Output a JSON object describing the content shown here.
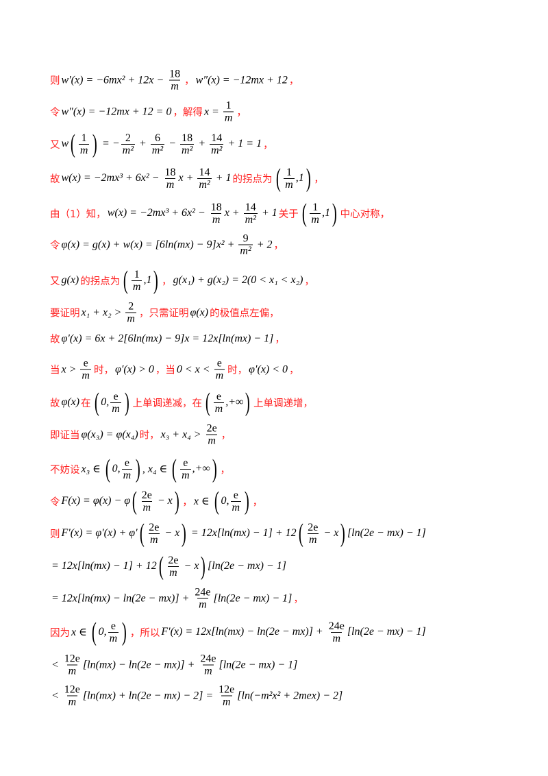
{
  "colors": {
    "text": "#000000",
    "accent": "#ff2020"
  },
  "lines": [
    [
      {
        "zh": "则"
      },
      {
        "m": [
          "w′(x) = −6mx² + 12x − ",
          {
            "f": [
              "18",
              "m"
            ]
          }
        ]
      },
      {
        "zh": "，"
      },
      {
        "m": [
          "w″(x) = −12mx + 12"
        ]
      },
      {
        "zh": "，"
      }
    ],
    [
      {
        "zh": "令"
      },
      {
        "m": [
          "w″(x) = −12mx + 12 = 0"
        ]
      },
      {
        "zh": "，解得"
      },
      {
        "m": [
          "x = ",
          {
            "f": [
              "1",
              "m"
            ]
          }
        ]
      },
      {
        "zh": "，"
      }
    ],
    [
      {
        "zh": "又"
      },
      {
        "m": [
          "w",
          {
            "p": [
              {
                "f": [
                  "1",
                  "m"
                ]
              }
            ]
          },
          " = −",
          {
            "f": [
              "2",
              "m²"
            ]
          },
          " + ",
          {
            "f": [
              "6",
              "m²"
            ]
          },
          " − ",
          {
            "f": [
              "18",
              "m²"
            ]
          },
          " + ",
          {
            "f": [
              "14",
              "m²"
            ]
          },
          " + 1 = 1"
        ]
      },
      {
        "zh": "，"
      }
    ],
    [
      {
        "zh": "故"
      },
      {
        "m": [
          "w(x) = −2mx³ + 6x² − ",
          {
            "f": [
              "18",
              "m"
            ]
          },
          "x + ",
          {
            "f": [
              "14",
              "m²"
            ]
          },
          " + 1"
        ]
      },
      {
        "zh": "的拐点为"
      },
      {
        "m": [
          {
            "p": [
              {
                "f": [
                  "1",
                  "m"
                ]
              },
              ",1"
            ]
          }
        ]
      },
      {
        "zh": "，"
      }
    ],
    [
      {
        "zh": "由（1）知，"
      },
      {
        "m": [
          "w(x) = −2mx³ + 6x² − ",
          {
            "f": [
              "18",
              "m"
            ]
          },
          "x + ",
          {
            "f": [
              "14",
              "m²"
            ]
          },
          " + 1"
        ]
      },
      {
        "zh": "关于"
      },
      {
        "m": [
          {
            "p": [
              {
                "f": [
                  "1",
                  "m"
                ]
              },
              ",1"
            ]
          }
        ]
      },
      {
        "zh": "中心对称，"
      }
    ],
    [
      {
        "zh": "令"
      },
      {
        "m": [
          "φ(x) = g(x) + w(x) = [6ln(mx) − 9]x² + ",
          {
            "f": [
              "9",
              "m²"
            ]
          },
          " + 2"
        ]
      },
      {
        "zh": "，"
      }
    ],
    [
      {
        "zh": "又"
      },
      {
        "m": [
          "g(x)"
        ]
      },
      {
        "zh": "的拐点为"
      },
      {
        "m": [
          {
            "p": [
              {
                "f": [
                  "1",
                  "m"
                ]
              },
              ",1"
            ]
          }
        ]
      },
      {
        "zh": "，"
      },
      {
        "m": [
          "g(x₁) + g(x₂) = 2(0 < x₁ < x₂)"
        ]
      },
      {
        "zh": "，"
      }
    ],
    [
      {
        "zh": "要证明"
      },
      {
        "m": [
          "x₁ + x₂ > ",
          {
            "f": [
              "2",
              "m"
            ]
          }
        ]
      },
      {
        "zh": "，只需证明"
      },
      {
        "m": [
          "φ(x)"
        ]
      },
      {
        "zh": "的极值点左偏，"
      }
    ],
    [
      {
        "zh": "故"
      },
      {
        "m": [
          "φ′(x) = 6x + 2[6ln(mx) − 9]x = 12x[ln(mx) − 1]"
        ]
      },
      {
        "zh": "，"
      }
    ],
    [
      {
        "zh": "当"
      },
      {
        "m": [
          "x > ",
          {
            "f": [
              "e",
              "m"
            ]
          }
        ]
      },
      {
        "zh": "时，"
      },
      {
        "m": [
          "φ′(x) > 0"
        ]
      },
      {
        "zh": "，当"
      },
      {
        "m": [
          "0 < x < ",
          {
            "f": [
              "e",
              "m"
            ]
          }
        ]
      },
      {
        "zh": "时，"
      },
      {
        "m": [
          "φ′(x) < 0"
        ]
      },
      {
        "zh": "，"
      }
    ],
    [
      {
        "zh": "故"
      },
      {
        "m": [
          "φ(x)"
        ]
      },
      {
        "zh": "在"
      },
      {
        "m": [
          {
            "p": [
              "0,",
              {
                "f": [
                  "e",
                  "m"
                ]
              }
            ]
          }
        ]
      },
      {
        "zh": "上单调递减，在"
      },
      {
        "m": [
          {
            "p": [
              {
                "f": [
                  "e",
                  "m"
                ]
              },
              ",+∞"
            ]
          }
        ]
      },
      {
        "zh": "上单调递增，"
      }
    ],
    [
      {
        "zh": "即证当"
      },
      {
        "m": [
          "φ(x₃) = φ(x₄)"
        ]
      },
      {
        "zh": "时，"
      },
      {
        "m": [
          "x₃ + x₄ > ",
          {
            "f": [
              "2e",
              "m"
            ]
          }
        ]
      },
      {
        "zh": "，"
      }
    ],
    [
      {
        "zh": "不妨设"
      },
      {
        "m": [
          "x₃ ∈ ",
          {
            "p": [
              "0,",
              {
                "f": [
                  "e",
                  "m"
                ]
              }
            ]
          },
          ", x₄ ∈ ",
          {
            "p": [
              {
                "f": [
                  "e",
                  "m"
                ]
              },
              ",+∞"
            ]
          }
        ]
      },
      {
        "zh": "，"
      }
    ],
    [
      {
        "zh": "令"
      },
      {
        "m": [
          "F(x) = φ(x) − φ",
          {
            "p": [
              {
                "f": [
                  "2e",
                  "m"
                ]
              },
              " − x"
            ]
          }
        ]
      },
      {
        "zh": "，"
      },
      {
        "m": [
          "x ∈ ",
          {
            "p": [
              "0,",
              {
                "f": [
                  "e",
                  "m"
                ]
              }
            ]
          }
        ]
      },
      {
        "zh": "，"
      }
    ],
    [
      {
        "zh": "则"
      },
      {
        "m": [
          "F′(x) = φ′(x) + φ′",
          {
            "p": [
              {
                "f": [
                  "2e",
                  "m"
                ]
              },
              " − x"
            ]
          },
          " = 12x[ln(mx) − 1] + 12",
          {
            "p": [
              {
                "f": [
                  "2e",
                  "m"
                ]
              },
              " − x"
            ]
          },
          "[ln(2e − mx) − 1]"
        ]
      }
    ],
    [
      {
        "m": [
          "= 12x[ln(mx) − 1] + 12",
          {
            "p": [
              {
                "f": [
                  "2e",
                  "m"
                ]
              },
              " − x"
            ]
          },
          "[ln(2e − mx) − 1]"
        ]
      }
    ],
    [
      {
        "m": [
          "= 12x[ln(mx) − ln(2e − mx)] + ",
          {
            "f": [
              "24e",
              "m"
            ]
          },
          "[ln(2e − mx) − 1]"
        ]
      },
      {
        "zh": "，"
      }
    ],
    [
      {
        "zh": "因为"
      },
      {
        "m": [
          "x ∈ ",
          {
            "p": [
              "0,",
              {
                "f": [
                  "e",
                  "m"
                ]
              }
            ]
          }
        ]
      },
      {
        "zh": "，所以"
      },
      {
        "m": [
          "F′(x) = 12x[ln(mx) − ln(2e − mx)] + ",
          {
            "f": [
              "24e",
              "m"
            ]
          },
          "[ln(2e − mx) − 1]"
        ]
      }
    ],
    [
      {
        "m": [
          "< ",
          {
            "f": [
              "12e",
              "m"
            ]
          },
          "[ln(mx) − ln(2e − mx)] + ",
          {
            "f": [
              "24e",
              "m"
            ]
          },
          "[ln(2e − mx) − 1]"
        ]
      }
    ],
    [
      {
        "m": [
          "< ",
          {
            "f": [
              "12e",
              "m"
            ]
          },
          "[ln(mx) + ln(2e − mx) − 2] = ",
          {
            "f": [
              "12e",
              "m"
            ]
          },
          "[ln(−m²x² + 2mex) − 2]"
        ]
      }
    ]
  ]
}
